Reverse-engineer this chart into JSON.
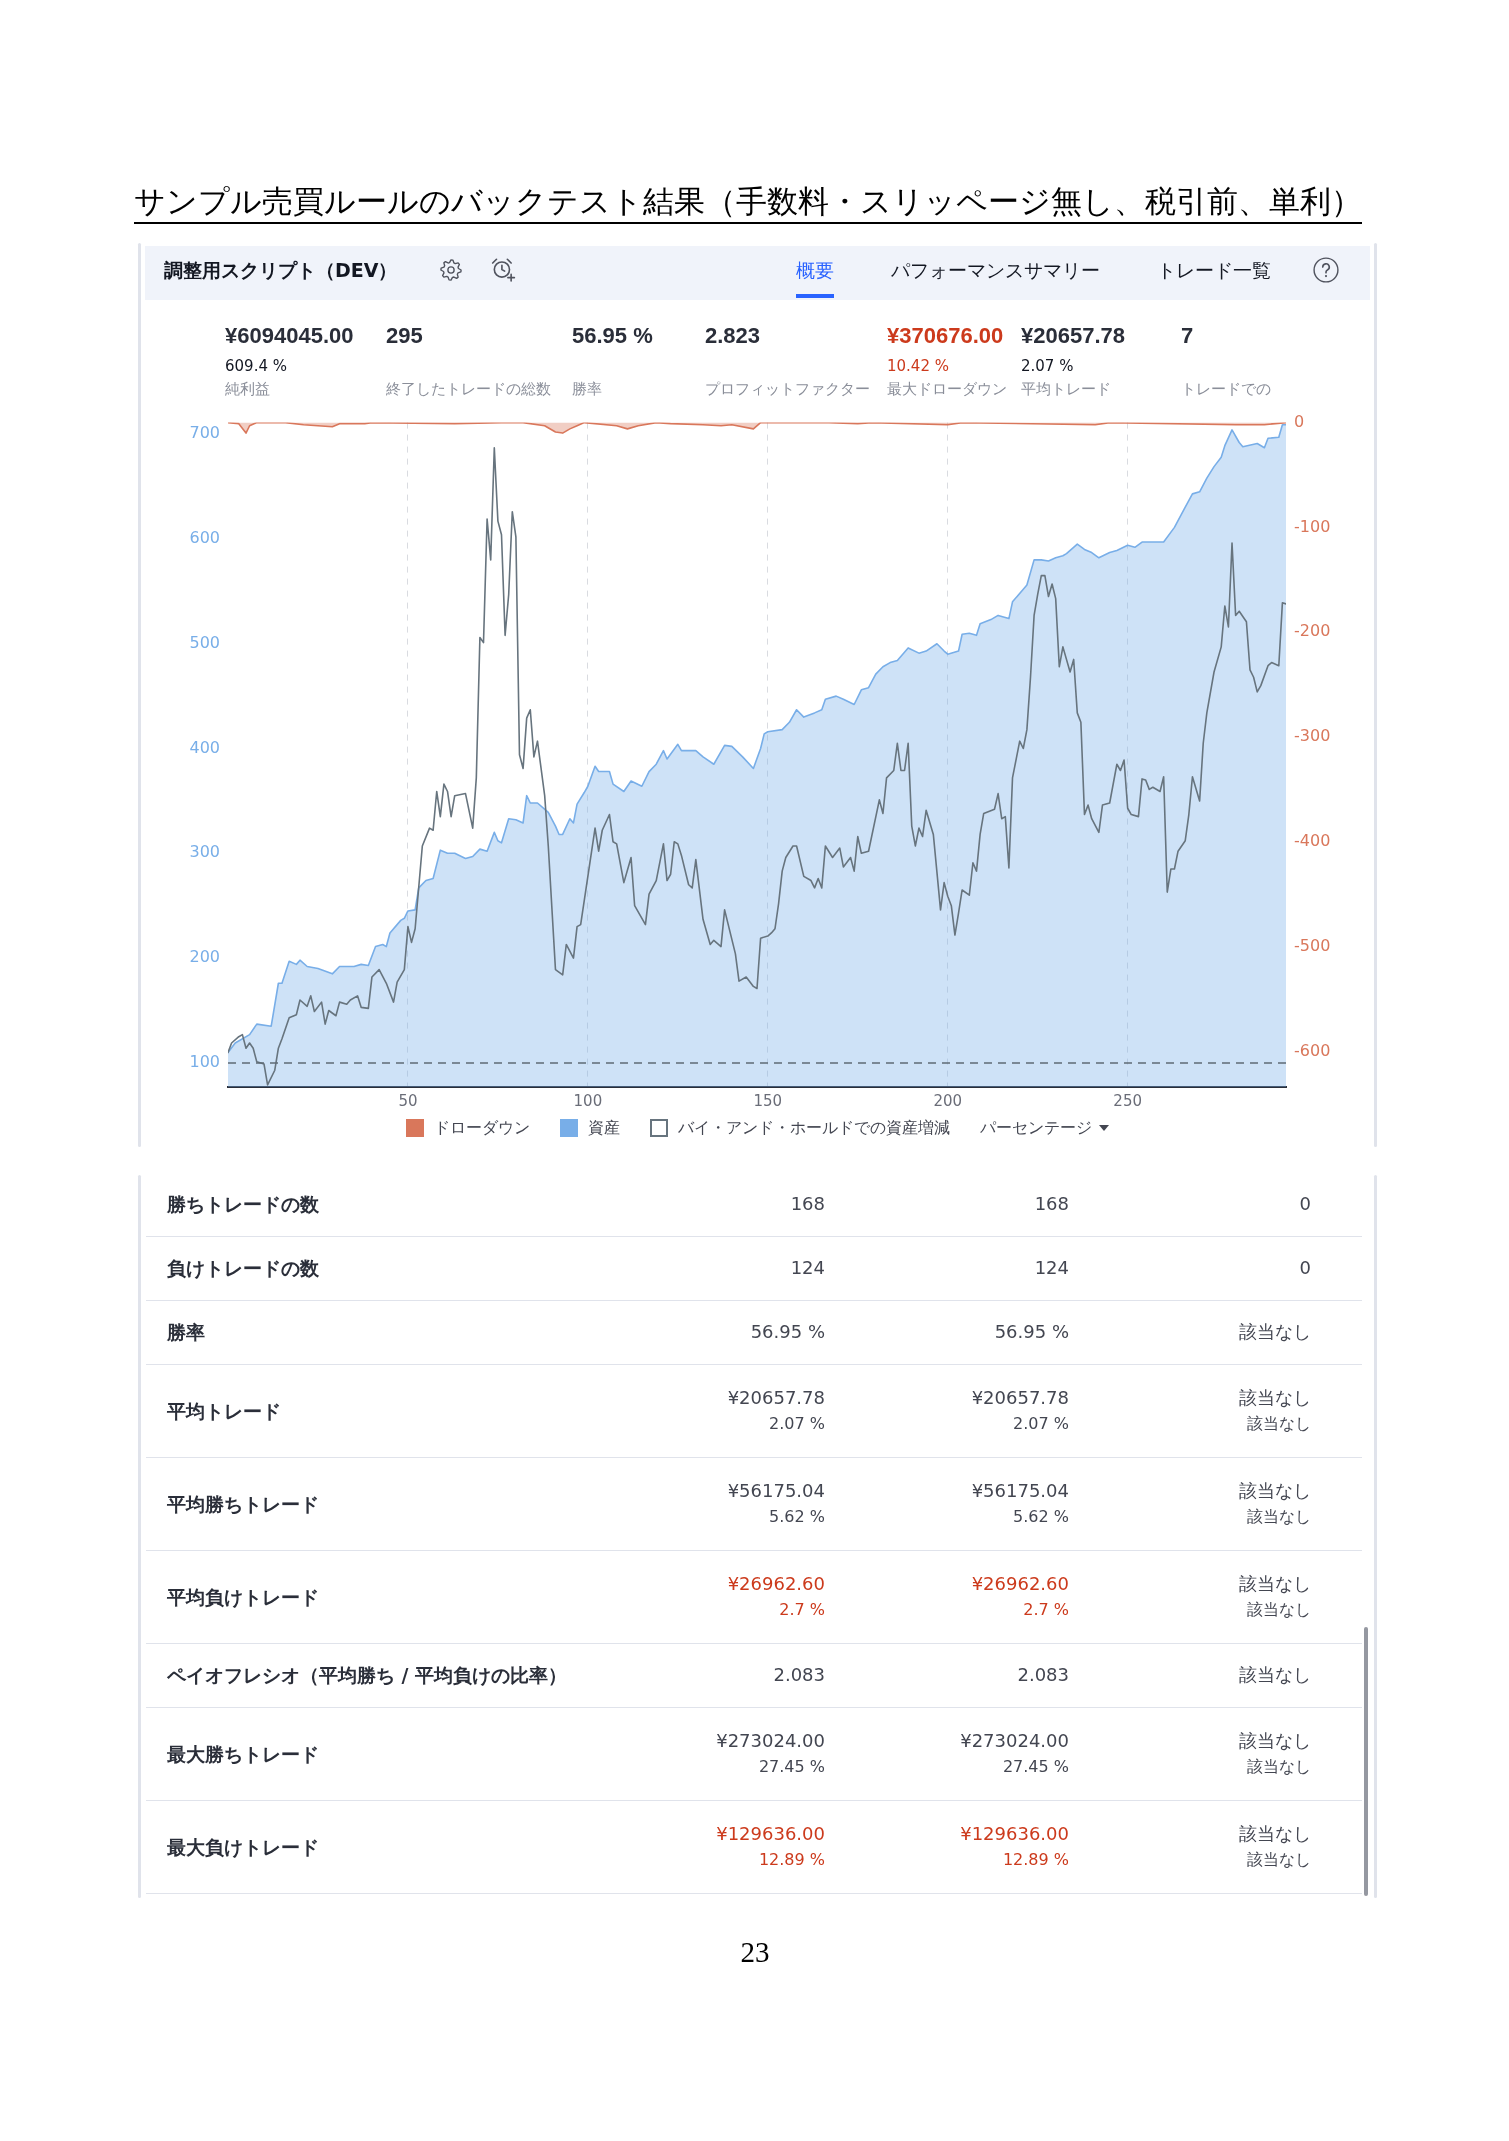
{
  "chart_data": [
    {
      "type": "other",
      "title": "サンプル売買ルールのバックテスト結果（手数料・スリッページ無し、税引前、単利）",
      "annotations": [
        "調整用スクリプト（DEV）",
        "概要",
        "パフォーマンスサマリー",
        "トレード一覧",
        "¥6094045.00\n609.4 %\n純利益",
        "295\n終了したトレードの総数",
        "56.95 %\n勝率",
        "2.823\nプロフィットファクター",
        "¥370676.00\n10.42 %\n最大ドローダウン",
        "¥20657.78\n2.07 %\n平均トレード",
        "7\nトレードでの"
      ],
      "colors": [
        null,
        "#2962ff",
        null,
        null,
        null,
        null,
        null,
        null,
        "#cc3a1c",
        null,
        null
      ]
    },
    {
      "type": "line",
      "xlim": [
        0,
        294
      ],
      "xticks": [
        50,
        100,
        150,
        200,
        250
      ],
      "ylim": [
        77,
        711
      ],
      "yticks": [
        100,
        200,
        300,
        400,
        500,
        600,
        700
      ],
      "y2lim": [
        -634,
        0
      ],
      "y2ticks": [
        0,
        -100,
        -200,
        -300,
        -400,
        -500,
        -600
      ],
      "grid": "x",
      "legend": "bottom",
      "ref_lines": [
        {
          "axis": "y",
          "value": 100,
          "line_style": "dashed",
          "color": "#5f6b75"
        }
      ],
      "annotations": [
        "パーセンテージ"
      ],
      "series": [
        {
          "name": "ドローダウン",
          "type": "area",
          "axis": "y2",
          "color": "#d9775b",
          "x": [
            0,
            3,
            5,
            6,
            8,
            16,
            21,
            29,
            31,
            38,
            40,
            63,
            76,
            82,
            88,
            91,
            93,
            95,
            97,
            99,
            108,
            111,
            114,
            119,
            123,
            132,
            137,
            140,
            146,
            148,
            167,
            175,
            179,
            200,
            204,
            241,
            245,
            280,
            288,
            294
          ],
          "values": [
            0,
            -1,
            -10,
            -3,
            0,
            0,
            -2,
            -4,
            -1,
            -1,
            0,
            -1,
            0,
            0,
            -3,
            -9,
            -10,
            -6,
            -3,
            0,
            -3,
            -6,
            -3,
            0,
            -1,
            -2,
            -3,
            -2,
            -6,
            0,
            0,
            -1,
            0,
            -2,
            0,
            -2,
            0,
            -2,
            -2,
            0
          ]
        },
        {
          "name": "資産",
          "type": "area",
          "color": "#78aee8",
          "x": [
            0,
            2,
            6,
            8,
            12,
            14,
            15,
            17,
            19,
            20,
            22,
            25,
            29,
            31,
            35,
            37,
            39,
            41,
            43,
            44,
            45,
            48,
            49,
            50,
            52,
            53,
            55,
            57,
            59,
            61,
            63,
            66,
            68,
            70,
            72,
            74,
            75,
            76,
            78,
            80,
            82,
            83,
            84,
            86,
            89,
            91,
            92,
            93,
            95,
            96,
            97,
            99,
            100,
            102,
            103,
            106,
            107,
            110,
            112,
            115,
            117,
            119,
            121,
            122,
            125,
            126,
            130,
            132,
            135,
            138,
            140,
            143,
            146,
            148,
            149,
            150,
            154,
            156,
            158,
            160,
            163,
            165,
            166,
            169,
            171,
            174,
            176,
            178,
            180,
            182,
            184,
            186,
            189,
            192,
            194,
            197,
            199,
            200,
            203,
            204,
            206,
            208,
            209,
            212,
            214,
            217,
            218,
            221,
            222,
            224,
            226,
            228,
            230,
            232,
            233,
            236,
            238,
            240,
            242,
            245,
            247,
            250,
            252,
            254,
            258,
            260,
            263,
            265,
            268,
            270,
            272,
            274,
            276,
            277,
            279,
            281,
            282,
            286,
            288,
            289,
            292,
            293,
            294
          ],
          "values": [
            110,
            119,
            127,
            137,
            135,
            176,
            176,
            197,
            194,
            198,
            192,
            190,
            185,
            192,
            192,
            194,
            193,
            211,
            213,
            211,
            224,
            236,
            238,
            245,
            246,
            267,
            274,
            276,
            303,
            300,
            300,
            295,
            297,
            304,
            302,
            320,
            312,
            310,
            333,
            332,
            329,
            355,
            348,
            348,
            339,
            326,
            318,
            318,
            333,
            329,
            347,
            358,
            364,
            383,
            378,
            378,
            366,
            359,
            369,
            364,
            378,
            385,
            398,
            390,
            404,
            398,
            398,
            392,
            385,
            403,
            402,
            392,
            381,
            400,
            414,
            416,
            418,
            425,
            437,
            430,
            434,
            437,
            447,
            450,
            447,
            442,
            456,
            458,
            471,
            478,
            482,
            484,
            496,
            491,
            493,
            500,
            493,
            490,
            493,
            509,
            510,
            508,
            519,
            523,
            527,
            524,
            540,
            552,
            556,
            580,
            580,
            579,
            582,
            584,
            586,
            595,
            590,
            587,
            582,
            587,
            589,
            594,
            592,
            597,
            597,
            597,
            611,
            624,
            643,
            645,
            658,
            669,
            678,
            689,
            704,
            692,
            688,
            691,
            687,
            696,
            697,
            709,
            709
          ]
        },
        {
          "name": "バイ・アンド・ホールドでの資産増減",
          "color": "#67747e",
          "x": [
            0,
            1,
            3,
            4,
            5,
            6,
            7,
            8,
            10,
            11,
            13,
            14,
            15,
            17,
            19,
            20,
            22,
            23,
            24,
            26,
            27,
            28,
            30,
            31,
            33,
            34,
            36,
            37,
            39,
            40,
            42,
            44,
            46,
            47,
            49,
            50,
            51,
            52,
            54,
            56,
            57,
            58,
            59,
            60,
            61,
            62,
            63,
            66,
            68,
            69,
            70,
            71,
            72,
            73,
            74,
            75,
            76,
            77,
            78,
            79,
            80,
            81,
            82,
            83,
            84,
            85,
            86,
            88,
            89,
            91,
            93,
            94,
            96,
            97,
            98,
            102,
            103,
            104,
            106,
            107,
            108,
            110,
            112,
            113,
            116,
            117,
            119,
            121,
            122,
            123,
            124,
            125,
            126,
            128,
            129,
            130,
            132,
            134,
            135,
            137,
            138,
            141,
            142,
            144,
            146,
            147,
            148,
            150,
            151,
            152,
            153,
            154,
            155,
            157,
            158,
            160,
            162,
            163,
            164,
            165,
            166,
            168,
            170,
            171,
            173,
            174,
            175,
            176,
            178,
            181,
            182,
            183,
            185,
            186,
            187,
            188,
            189,
            190,
            191,
            192,
            193,
            194,
            196,
            198,
            199,
            200,
            201,
            202,
            203,
            204,
            206,
            207,
            208,
            209,
            210,
            213,
            214,
            215,
            216,
            217,
            218,
            220,
            221,
            222,
            223,
            224,
            225,
            226,
            227,
            228,
            229,
            230,
            231,
            232,
            234,
            235,
            236,
            237,
            238,
            239,
            240,
            242,
            243,
            245,
            247,
            248,
            249,
            250,
            251,
            253,
            254,
            255,
            256,
            257,
            259,
            260,
            261,
            262,
            263,
            264,
            266,
            267,
            268,
            270,
            271,
            272,
            274,
            276,
            277,
            278,
            279,
            280,
            281,
            283,
            284,
            285,
            286,
            287,
            289,
            290,
            292,
            293,
            294
          ],
          "values": [
            110,
            119,
            125,
            127,
            114,
            119,
            114,
            101,
            99,
            79,
            93,
            114,
            123,
            143,
            146,
            160,
            154,
            164,
            149,
            158,
            137,
            150,
            145,
            158,
            156,
            160,
            164,
            153,
            152,
            182,
            189,
            176,
            158,
            177,
            189,
            230,
            215,
            228,
            307,
            324,
            322,
            359,
            335,
            366,
            359,
            335,
            355,
            357,
            324,
            372,
            506,
            501,
            619,
            580,
            687,
            617,
            604,
            508,
            547,
            626,
            602,
            394,
            381,
            429,
            437,
            392,
            407,
            355,
            307,
            189,
            184,
            213,
            200,
            230,
            232,
            324,
            302,
            322,
            337,
            311,
            309,
            272,
            296,
            250,
            232,
            261,
            274,
            309,
            274,
            280,
            311,
            309,
            298,
            270,
            267,
            294,
            237,
            213,
            217,
            211,
            246,
            204,
            178,
            182,
            173,
            171,
            219,
            221,
            224,
            228,
            252,
            283,
            296,
            307,
            307,
            278,
            274,
            267,
            276,
            267,
            307,
            296,
            305,
            287,
            296,
            283,
            316,
            300,
            302,
            351,
            338,
            372,
            379,
            405,
            379,
            379,
            405,
            326,
            307,
            324,
            316,
            341,
            318,
            246,
            272,
            259,
            250,
            222,
            243,
            265,
            260,
            291,
            283,
            318,
            338,
            342,
            357,
            333,
            335,
            286,
            372,
            407,
            400,
            418,
            468,
            527,
            547,
            565,
            565,
            545,
            557,
            543,
            478,
            497,
            473,
            485,
            434,
            425,
            337,
            346,
            333,
            320,
            346,
            348,
            385,
            379,
            389,
            343,
            337,
            335,
            371,
            370,
            361,
            363,
            359,
            373,
            263,
            285,
            285,
            302,
            312,
            337,
            373,
            350,
            405,
            434,
            473,
            497,
            536,
            516,
            596,
            527,
            531,
            521,
            475,
            468,
            454,
            460,
            479,
            482,
            479,
            539,
            538
          ]
        }
      ]
    },
    {
      "type": "other",
      "annotations": [
        "勝ちトレードの数",
        "168",
        "168",
        "0",
        "負けトレードの数",
        "124",
        "124",
        "0",
        "勝率",
        "56.95 %",
        "56.95 %",
        "該当なし",
        "平均トレード",
        "¥20657.78",
        "¥20657.78",
        "該当なし",
        null,
        "2.07 %",
        "2.07 %",
        "該当なし",
        "平均勝ちトレード",
        "¥56175.04",
        "¥56175.04",
        "該当なし",
        null,
        "5.62 %",
        "5.62 %",
        "該当なし",
        "平均負けトレード",
        "¥26962.60",
        "¥26962.60",
        "該当なし",
        null,
        "2.7 %",
        "2.7 %",
        "該当なし",
        "ペイオフレシオ（平均勝ち / 平均負けの比率）",
        "2.083",
        "2.083",
        "該当なし",
        "最大勝ちトレード",
        "¥273024.00",
        "¥273024.00",
        "該当なし",
        null,
        "27.45 %",
        "27.45 %",
        "該当なし",
        "最大負けトレード",
        "¥129636.00",
        "¥129636.00",
        "該当なし",
        null,
        "12.89 %",
        "12.89 %",
        "該当なし",
        "23"
      ],
      "colors": [
        null,
        null,
        null,
        null,
        null,
        null,
        null,
        null,
        null,
        null,
        null,
        null,
        null,
        null,
        null,
        null,
        null,
        null,
        null,
        null,
        null,
        null,
        null,
        null,
        null,
        null,
        null,
        null,
        null,
        "#cc3a1c",
        "#cc3a1c",
        null,
        null,
        "#cc3a1c",
        "#cc3a1c",
        null,
        null,
        null,
        null,
        null,
        null,
        null,
        null,
        null,
        null,
        null,
        null,
        null,
        null,
        "#cc3a1c",
        "#cc3a1c",
        null,
        null,
        "#cc3a1c",
        "#cc3a1c",
        null,
        null
      ]
    }
  ]
}
